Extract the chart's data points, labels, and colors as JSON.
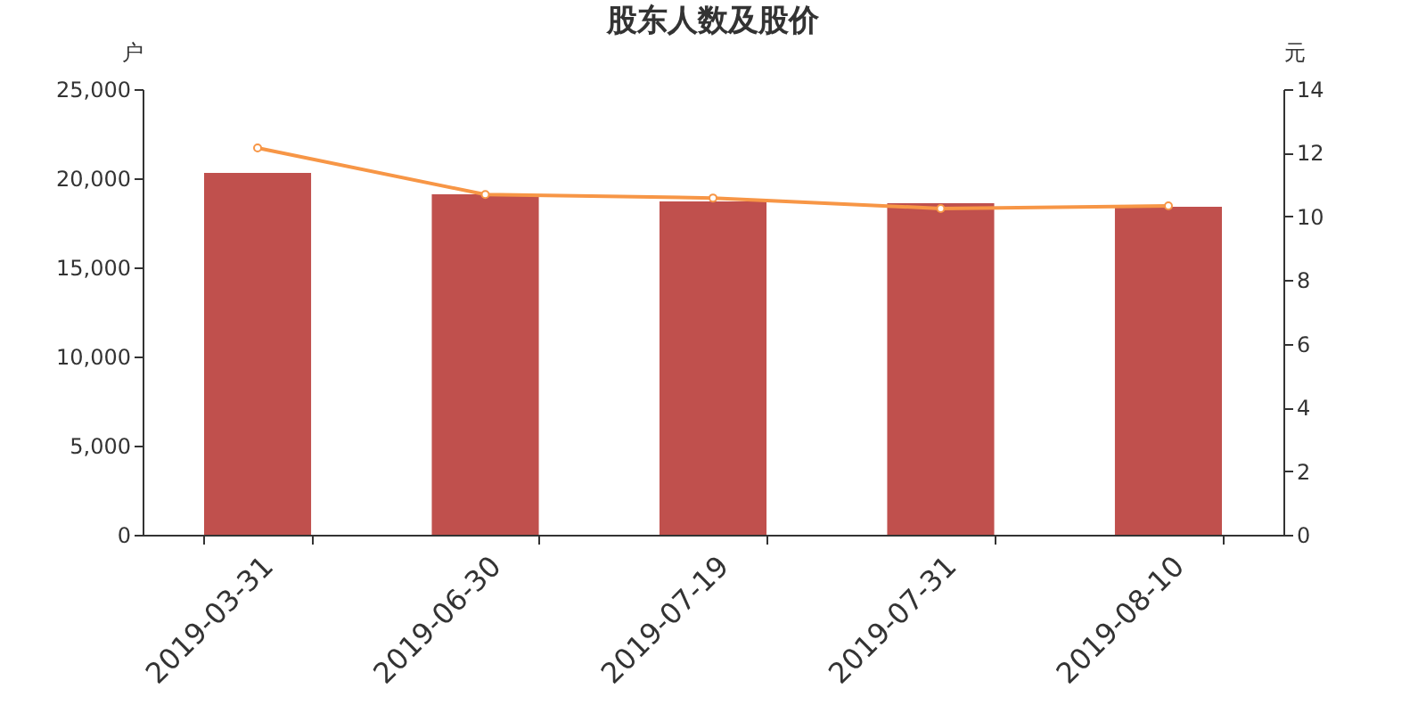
{
  "chart_data": {
    "type": "bar",
    "title": "股东人数及股价",
    "ylabel": "户",
    "y2label": "元",
    "categories": [
      "2019-03-31",
      "2019-06-30",
      "2019-07-19",
      "2019-07-31",
      "2019-08-10"
    ],
    "series": [
      {
        "color": "#c0504d",
        "values": [
          20300,
          19100,
          18700,
          18600,
          18400
        ]
      },
      {
        "type": "line",
        "axis": "y2",
        "color": "#f79646",
        "marker": "circle",
        "values": [
          12.15,
          10.69,
          10.58,
          10.25,
          10.33
        ]
      }
    ],
    "ylim": [
      0,
      25000
    ],
    "yticks": [
      0,
      {
        "value": 5000,
        "label": "5,000"
      },
      {
        "value": 10000,
        "label": "10,000"
      },
      {
        "value": 15000,
        "label": "15,000"
      },
      {
        "value": 20000,
        "label": "20,000"
      },
      {
        "value": 25000,
        "label": "25,000"
      }
    ],
    "y2lim": [
      0,
      14
    ],
    "y2ticks": [
      0,
      2,
      4,
      6,
      8,
      10,
      12,
      14
    ]
  }
}
